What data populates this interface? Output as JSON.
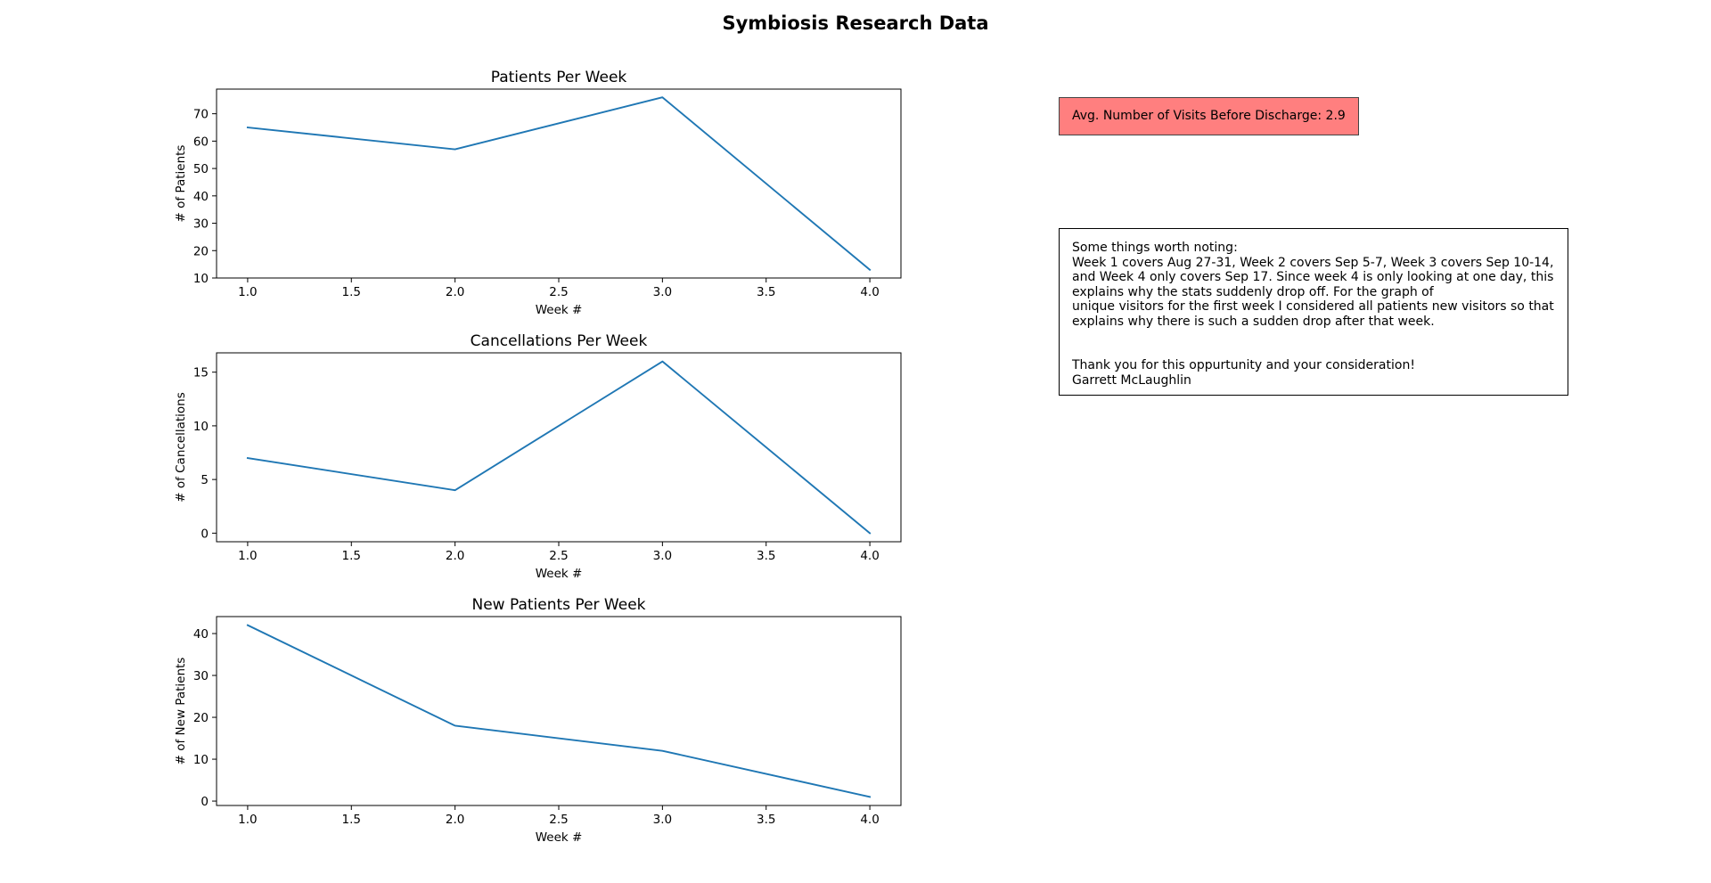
{
  "figure": {
    "title": "Symbiosis Research Data"
  },
  "chart_data": [
    {
      "type": "line",
      "title": "Patients Per Week",
      "xlabel": "Week #",
      "ylabel": "# of Patients",
      "x": [
        1.0,
        2.0,
        3.0,
        4.0
      ],
      "series": [
        {
          "values": [
            65,
            57,
            76,
            13
          ],
          "color": "#1f77b4"
        }
      ],
      "xlim": [
        0.85,
        4.15
      ],
      "ylim": [
        10,
        79
      ],
      "xticks": [
        1.0,
        1.5,
        2.0,
        2.5,
        3.0,
        3.5,
        4.0
      ],
      "xtick_labels": [
        "1.0",
        "1.5",
        "2.0",
        "2.5",
        "3.0",
        "3.5",
        "4.0"
      ],
      "yticks": [
        10,
        20,
        30,
        40,
        50,
        60,
        70
      ],
      "ytick_labels": [
        "10",
        "20",
        "30",
        "40",
        "50",
        "60",
        "70"
      ],
      "grid": false,
      "legend": "none"
    },
    {
      "type": "line",
      "title": "Cancellations Per Week",
      "xlabel": "Week #",
      "ylabel": "# of Cancellations",
      "x": [
        1.0,
        2.0,
        3.0,
        4.0
      ],
      "series": [
        {
          "values": [
            7,
            4,
            16,
            0
          ],
          "color": "#1f77b4"
        }
      ],
      "xlim": [
        0.85,
        4.15
      ],
      "ylim": [
        -0.8,
        16.8
      ],
      "xticks": [
        1.0,
        1.5,
        2.0,
        2.5,
        3.0,
        3.5,
        4.0
      ],
      "xtick_labels": [
        "1.0",
        "1.5",
        "2.0",
        "2.5",
        "3.0",
        "3.5",
        "4.0"
      ],
      "yticks": [
        0,
        5,
        10,
        15
      ],
      "ytick_labels": [
        "0",
        "5",
        "10",
        "15"
      ],
      "grid": false,
      "legend": "none"
    },
    {
      "type": "line",
      "title": "New Patients Per Week",
      "xlabel": "Week #",
      "ylabel": "# of New Patients",
      "x": [
        1.0,
        2.0,
        3.0,
        4.0
      ],
      "series": [
        {
          "values": [
            42,
            18,
            12,
            1
          ],
          "color": "#1f77b4"
        }
      ],
      "xlim": [
        0.85,
        4.15
      ],
      "ylim": [
        -1.05,
        44.05
      ],
      "xticks": [
        1.0,
        1.5,
        2.0,
        2.5,
        3.0,
        3.5,
        4.0
      ],
      "xtick_labels": [
        "1.0",
        "1.5",
        "2.0",
        "2.5",
        "3.0",
        "3.5",
        "4.0"
      ],
      "yticks": [
        0,
        10,
        20,
        30,
        40
      ],
      "ytick_labels": [
        "0",
        "10",
        "20",
        "30",
        "40"
      ],
      "grid": false,
      "legend": "none"
    }
  ],
  "avg_box": {
    "text": "Avg. Number of Visits Before Discharge: 2.9",
    "background": "#ff7f7f"
  },
  "notes": {
    "lines": [
      "Some things worth noting:",
      "Week 1 covers Aug 27-31, Week 2 covers Sep 5-7, Week 3 covers Sep 10-14,",
      "and Week 4 only covers Sep 17. Since week 4 is only looking at one day, this",
      "explains why the stats suddenly drop off. For the graph of",
      "unique visitors for the first week I considered all patients new visitors so that",
      "explains why there is such a sudden drop after that week.",
      "",
      "",
      "Thank you for this oppurtunity and your consideration!",
      "Garrett McLaughlin"
    ]
  }
}
